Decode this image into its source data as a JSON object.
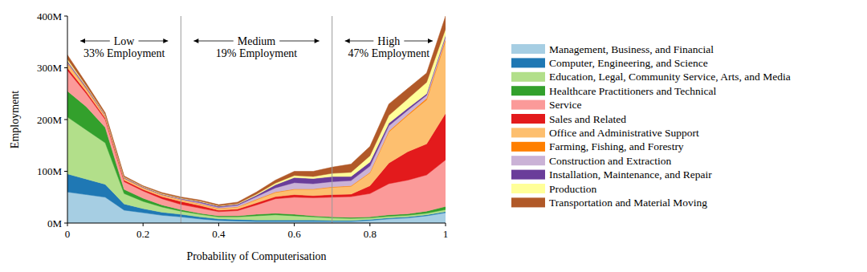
{
  "chart_data": {
    "type": "area",
    "stacked": true,
    "x_label": "Probability of Computerisation",
    "y_label": "Employment",
    "x": [
      0,
      0.05,
      0.1,
      0.15,
      0.2,
      0.25,
      0.3,
      0.35,
      0.4,
      0.45,
      0.5,
      0.55,
      0.6,
      0.65,
      0.7,
      0.75,
      0.8,
      0.85,
      0.9,
      0.95,
      1
    ],
    "xlim": [
      0,
      1
    ],
    "xticks": [
      0,
      0.2,
      0.4,
      0.6,
      0.8,
      1
    ],
    "ylim": [
      0,
      400
    ],
    "yticks": [
      {
        "value": 0,
        "label": "0M"
      },
      {
        "value": 100,
        "label": "100M"
      },
      {
        "value": 200,
        "label": "200M"
      },
      {
        "value": 300,
        "label": "300M"
      },
      {
        "value": 400,
        "label": "400M"
      }
    ],
    "legend": "right",
    "annotations": [
      {
        "text": "Low",
        "detail": "33% Employment",
        "x_range": [
          0,
          0.3
        ]
      },
      {
        "text": "Medium",
        "detail": "19% Employment",
        "x_range": [
          0.3,
          0.7
        ]
      },
      {
        "text": "High",
        "detail": "47% Employment",
        "x_range": [
          0.7,
          1
        ]
      }
    ],
    "series": [
      {
        "name": "Management, Business, and Financial",
        "color": "#a6cee3",
        "values": [
          60,
          55,
          50,
          25,
          20,
          15,
          12,
          8,
          5,
          4,
          3,
          3,
          3,
          3,
          3,
          3,
          5,
          8,
          10,
          14,
          20
        ]
      },
      {
        "name": "Computer, Engineering, and Science",
        "color": "#1f78b4",
        "values": [
          35,
          30,
          25,
          12,
          8,
          6,
          5,
          4,
          3,
          3,
          3,
          3,
          3,
          3,
          2,
          2,
          2,
          2,
          2,
          2,
          2
        ]
      },
      {
        "name": "Education, Legal, Community Service, Arts, and Media",
        "color": "#b2df8a",
        "values": [
          110,
          95,
          80,
          20,
          14,
          10,
          6,
          5,
          4,
          5,
          8,
          10,
          8,
          6,
          5,
          4,
          3,
          3,
          3,
          3,
          4
        ]
      },
      {
        "name": "Healthcare Practitioners and Technical",
        "color": "#33a02c",
        "values": [
          50,
          45,
          30,
          8,
          6,
          4,
          3,
          2,
          2,
          2,
          3,
          3,
          3,
          2,
          2,
          2,
          2,
          3,
          3,
          4,
          6
        ]
      },
      {
        "name": "Service",
        "color": "#fb9a99",
        "values": [
          40,
          25,
          15,
          15,
          14,
          12,
          10,
          10,
          8,
          10,
          18,
          28,
          33,
          35,
          38,
          40,
          45,
          60,
          65,
          70,
          90
        ]
      },
      {
        "name": "Sales and Related",
        "color": "#e31a1c",
        "values": [
          5,
          4,
          3,
          3,
          3,
          4,
          6,
          5,
          3,
          3,
          4,
          4,
          5,
          4,
          5,
          5,
          15,
          40,
          55,
          60,
          90
        ]
      },
      {
        "name": "Office and Administrative Support",
        "color": "#fdbf6f",
        "values": [
          8,
          5,
          3,
          3,
          3,
          3,
          3,
          3,
          3,
          4,
          6,
          8,
          10,
          12,
          14,
          15,
          25,
          60,
          70,
          85,
          140
        ]
      },
      {
        "name": "Farming, Fishing, and Forestry",
        "color": "#ff7f00",
        "values": [
          1,
          1,
          1,
          0.5,
          0.5,
          0.5,
          0.5,
          0.5,
          0.5,
          0.5,
          1,
          1,
          1,
          1,
          1,
          1,
          1,
          2,
          2,
          3,
          4
        ]
      },
      {
        "name": "Construction and Extraction",
        "color": "#cab2d6",
        "values": [
          2,
          1,
          1,
          0.5,
          0.5,
          0.5,
          1,
          2,
          2,
          3,
          5,
          8,
          12,
          10,
          10,
          10,
          12,
          10,
          8,
          6,
          4
        ]
      },
      {
        "name": "Installation, Maintenance, and Repair",
        "color": "#6a3d9a",
        "values": [
          2,
          2,
          1,
          1,
          1,
          1,
          1,
          2,
          2,
          2,
          3,
          6,
          10,
          10,
          10,
          8,
          8,
          5,
          4,
          3,
          3
        ]
      },
      {
        "name": "Production",
        "color": "#ffff99",
        "values": [
          4,
          2,
          1,
          1,
          1,
          1,
          1,
          1,
          1,
          1,
          2,
          3,
          4,
          4,
          6,
          8,
          12,
          15,
          18,
          22,
          12
        ]
      },
      {
        "name": "Transportation and Material Moving",
        "color": "#b15928",
        "values": [
          8,
          5,
          3,
          2,
          1,
          2,
          2,
          2,
          2,
          3,
          4,
          6,
          8,
          10,
          12,
          16,
          18,
          22,
          20,
          18,
          25
        ]
      }
    ]
  }
}
